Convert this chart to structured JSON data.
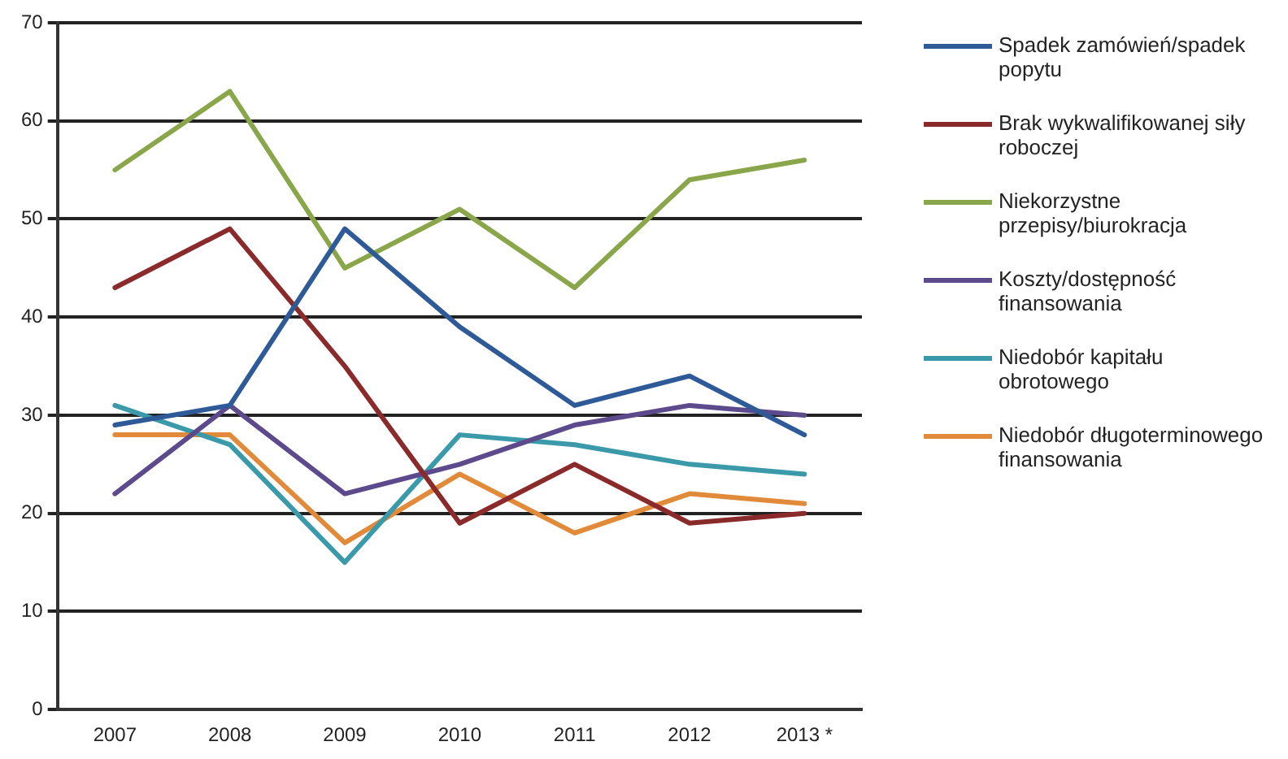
{
  "chart_data": {
    "type": "line",
    "categories": [
      "2007",
      "2008",
      "2009",
      "2010",
      "2011",
      "2012",
      "2013 *"
    ],
    "series": [
      {
        "name": "Spadek zamówień/spadek popytu",
        "color": "#2e5b97",
        "values": [
          29,
          31,
          49,
          39,
          31,
          34,
          28
        ]
      },
      {
        "name": "Brak wykwalifikowanej siły roboczej",
        "color": "#8b2a2a",
        "values": [
          43,
          49,
          35,
          19,
          25,
          19,
          20
        ]
      },
      {
        "name": "Niekorzystne przepisy/biurokracja",
        "color": "#8aa64a",
        "values": [
          55,
          63,
          45,
          51,
          43,
          54,
          56
        ]
      },
      {
        "name": "Koszty/dostępność finansowania",
        "color": "#5c4a8c",
        "values": [
          22,
          31,
          22,
          25,
          29,
          31,
          30
        ]
      },
      {
        "name": "Niedobór kapitału obrotowego",
        "color": "#3b9aaa",
        "values": [
          31,
          27,
          15,
          28,
          27,
          25,
          24
        ]
      },
      {
        "name": "Niedobór długoterminowego finansowania",
        "color": "#e08a3a",
        "values": [
          28,
          28,
          17,
          24,
          18,
          22,
          21
        ]
      }
    ],
    "ylim": [
      0,
      70
    ],
    "yticks": [
      0,
      10,
      20,
      30,
      40,
      50,
      60,
      70
    ],
    "grid": "y",
    "legend": "right",
    "marker": "none",
    "line_style": "solid"
  }
}
